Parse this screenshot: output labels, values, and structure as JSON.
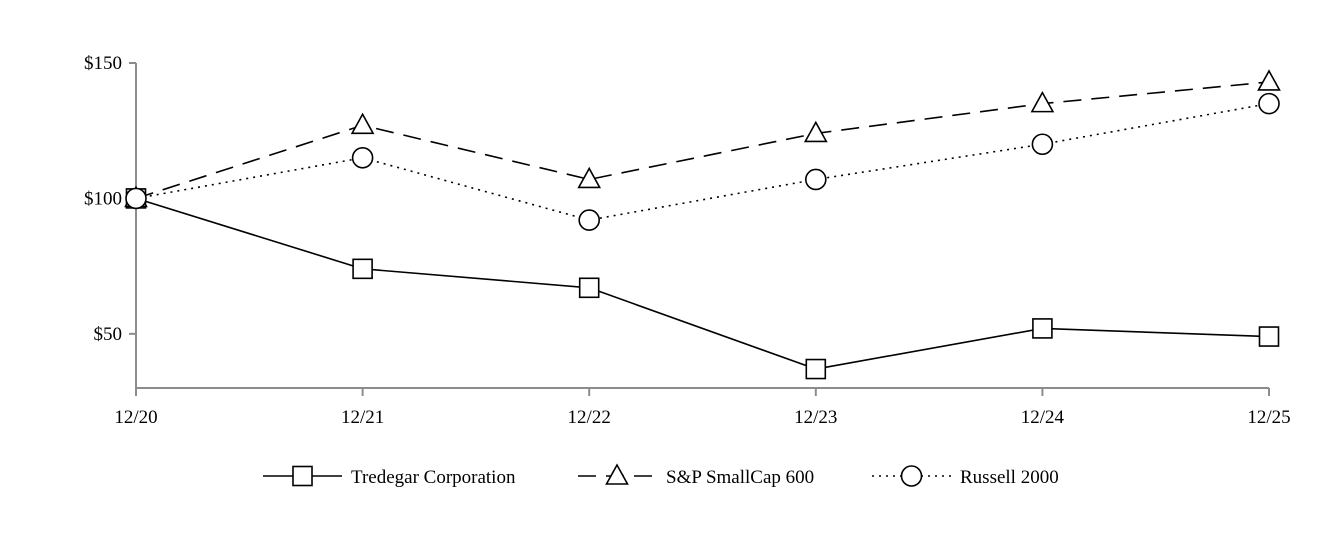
{
  "chart_data": {
    "type": "line",
    "title": "",
    "xlabel": "",
    "ylabel": "",
    "categories": [
      "12/20",
      "12/21",
      "12/22",
      "12/23",
      "12/24",
      "12/25"
    ],
    "y_ticks": [
      50,
      100,
      150
    ],
    "y_tick_labels": [
      "$50",
      "$100",
      "$150"
    ],
    "ylim": [
      30,
      150
    ],
    "grid": false,
    "legend_position": "bottom",
    "series": [
      {
        "name": "Tredegar Corporation",
        "values": [
          100,
          74,
          67,
          37,
          52,
          49
        ],
        "marker": "square",
        "line_style": "solid",
        "color": "#000000"
      },
      {
        "name": "S&P SmallCap 600",
        "values": [
          100,
          127,
          107,
          124,
          135,
          143
        ],
        "marker": "triangle",
        "line_style": "dashed",
        "color": "#000000"
      },
      {
        "name": "Russell 2000",
        "values": [
          100,
          115,
          92,
          107,
          120,
          135
        ],
        "marker": "circle",
        "line_style": "dotted",
        "color": "#000000"
      }
    ]
  }
}
